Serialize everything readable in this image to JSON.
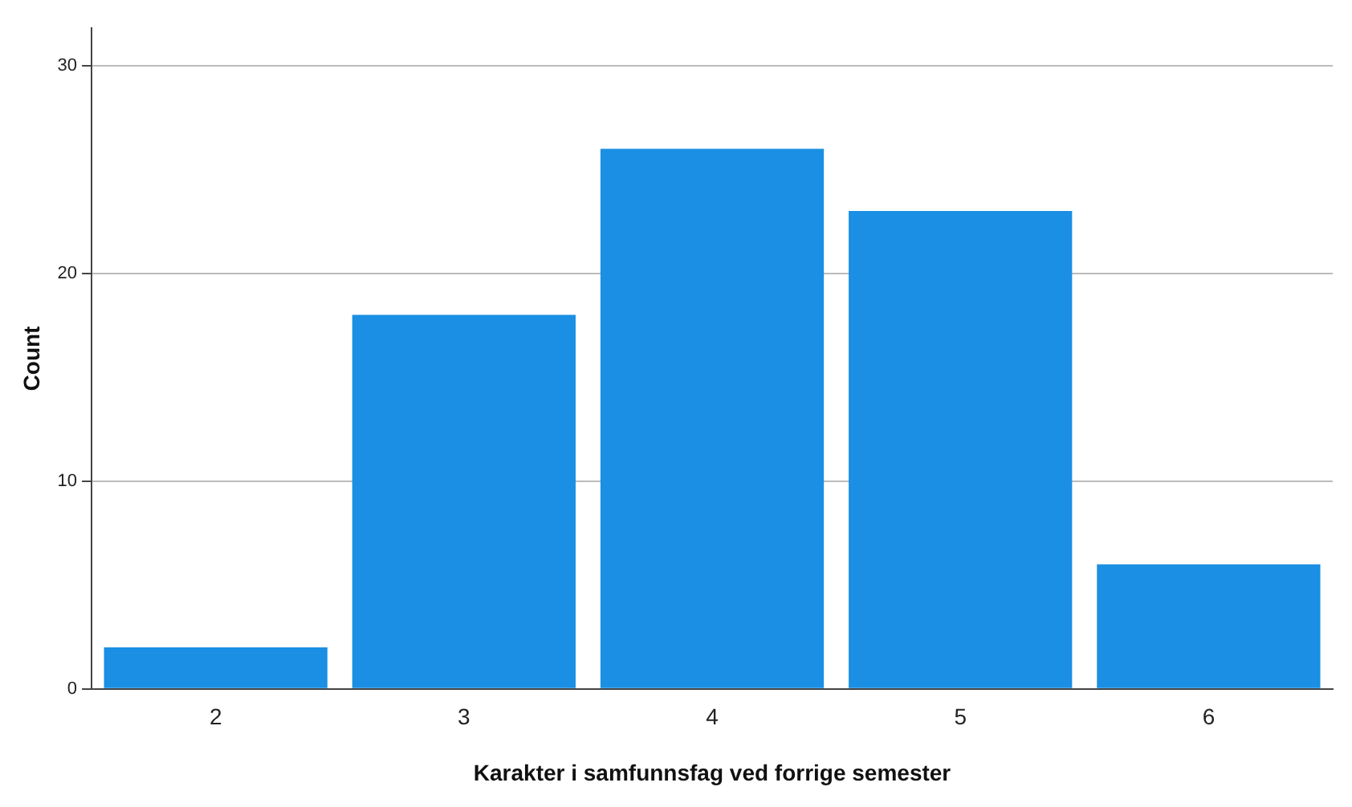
{
  "chart_data": {
    "type": "bar",
    "xlabel": "Karakter i samfunnsfag ved forrige semester",
    "ylabel": "Count",
    "categories": [
      "2",
      "3",
      "4",
      "5",
      "6"
    ],
    "values": [
      2,
      18,
      26,
      23,
      6
    ],
    "color": "#1a8fe3",
    "ylim": [
      0,
      31.8
    ],
    "yticks": [
      0,
      10,
      20,
      30
    ],
    "grid": "y"
  }
}
